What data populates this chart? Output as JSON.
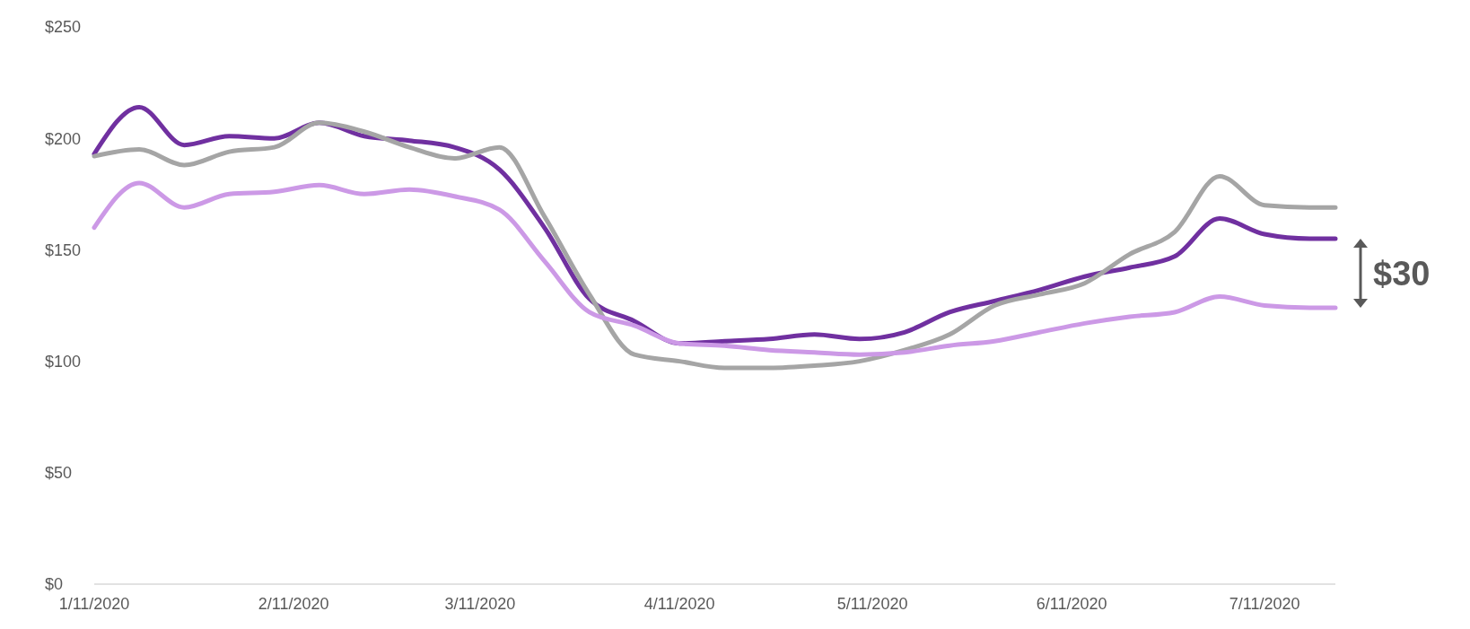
{
  "chart_data": {
    "type": "line",
    "x": [
      "2020-01-11",
      "2020-01-18",
      "2020-01-25",
      "2020-02-01",
      "2020-02-08",
      "2020-02-15",
      "2020-02-22",
      "2020-02-29",
      "2020-03-07",
      "2020-03-14",
      "2020-03-21",
      "2020-03-28",
      "2020-04-04",
      "2020-04-11",
      "2020-04-18",
      "2020-04-25",
      "2020-05-02",
      "2020-05-09",
      "2020-05-16",
      "2020-05-23",
      "2020-05-30",
      "2020-06-06",
      "2020-06-13",
      "2020-06-20",
      "2020-06-27",
      "2020-07-04",
      "2020-07-11",
      "2020-07-18",
      "2020-07-22"
    ],
    "series": [
      {
        "color": "#7030a0",
        "values": [
          193,
          214,
          197,
          201,
          200,
          207,
          201,
          199,
          196,
          186,
          160,
          128,
          118,
          108,
          109,
          110,
          112,
          110,
          113,
          122,
          127,
          132,
          138,
          142,
          147,
          164,
          157,
          155,
          155
        ]
      },
      {
        "color": "#a5a5a5",
        "values": [
          192,
          195,
          188,
          194,
          196,
          207,
          203,
          196,
          191,
          196,
          165,
          130,
          103,
          100,
          97,
          97,
          98,
          100,
          105,
          112,
          125,
          130,
          135,
          148,
          158,
          183,
          170,
          169,
          169
        ]
      },
      {
        "color": "#cc99e6",
        "values": [
          160,
          180,
          169,
          175,
          176,
          179,
          175,
          177,
          174,
          168,
          145,
          122,
          116,
          108,
          107,
          105,
          104,
          103,
          104,
          107,
          109,
          113,
          117,
          120,
          122,
          129,
          125,
          124,
          124
        ]
      }
    ],
    "xlim": [
      "2020-01-11",
      "2020-07-22"
    ],
    "xticks": [
      {
        "value": "2020-01-11",
        "label": "1/11/2020"
      },
      {
        "value": "2020-02-11",
        "label": "2/11/2020"
      },
      {
        "value": "2020-03-11",
        "label": "3/11/2020"
      },
      {
        "value": "2020-04-11",
        "label": "4/11/2020"
      },
      {
        "value": "2020-05-11",
        "label": "5/11/2020"
      },
      {
        "value": "2020-06-11",
        "label": "6/11/2020"
      },
      {
        "value": "2020-07-11",
        "label": "7/11/2020"
      }
    ],
    "ylim": [
      0,
      250
    ],
    "yticks": [
      {
        "value": 0,
        "label": "$0"
      },
      {
        "value": 50,
        "label": "$50"
      },
      {
        "value": 100,
        "label": "$100"
      },
      {
        "value": 150,
        "label": "$150"
      },
      {
        "value": 200,
        "label": "$200"
      },
      {
        "value": 250,
        "label": "$250"
      }
    ],
    "grid": false,
    "marker": "none",
    "line_style": "solid",
    "annotations": [
      "$30"
    ]
  }
}
